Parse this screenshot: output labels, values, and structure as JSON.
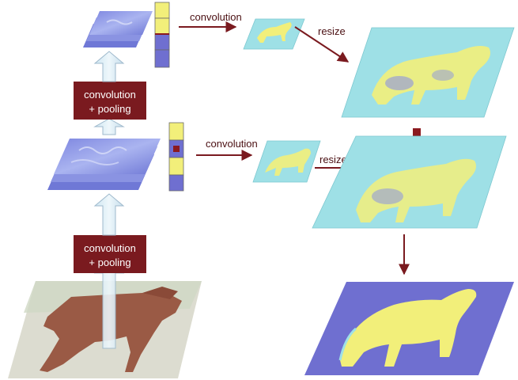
{
  "labels": {
    "top_conv_pool_line1": "convolution",
    "top_conv_pool_line2": "+ pooling",
    "bottom_conv_pool_line1": "convolution",
    "bottom_conv_pool_line2": "+ pooling",
    "top_convolution": "convolution",
    "middle_convolution": "convolution",
    "top_resize": "resize",
    "middle_resize": "resize"
  },
  "colors": {
    "box": "#7a1a1f",
    "arrow": "#7a1a1f",
    "map_cyan": "#9ee0e6",
    "map_yellow": "#f2ef7a",
    "map_blue": "#6f6fd0",
    "plus": "#8b1a1f"
  },
  "icons": {
    "plus": "plus-icon"
  }
}
